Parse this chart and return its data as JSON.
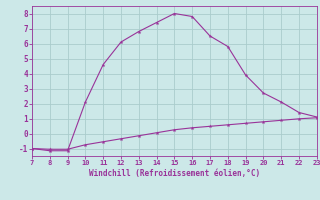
{
  "xlabel": "Windchill (Refroidissement éolien,°C)",
  "x_upper": [
    7,
    8,
    9,
    10,
    11,
    12,
    13,
    14,
    15,
    16,
    17,
    18,
    19,
    20,
    21,
    22,
    23
  ],
  "y_upper": [
    -1.0,
    -1.15,
    -1.15,
    2.1,
    4.6,
    6.1,
    6.8,
    7.4,
    8.0,
    7.8,
    6.5,
    5.8,
    3.9,
    2.7,
    2.1,
    1.4,
    1.1
  ],
  "x_lower": [
    7,
    8,
    9,
    10,
    11,
    12,
    13,
    14,
    15,
    16,
    17,
    18,
    19,
    20,
    21,
    22,
    23
  ],
  "y_lower": [
    -1.0,
    -1.05,
    -1.05,
    -0.75,
    -0.55,
    -0.35,
    -0.15,
    0.05,
    0.25,
    0.38,
    0.48,
    0.58,
    0.68,
    0.78,
    0.88,
    0.98,
    1.05
  ],
  "line_color": "#993399",
  "bg_color": "#cce8e8",
  "grid_color": "#aacccc",
  "axis_color": "#993399",
  "text_color": "#993399",
  "xlim": [
    7,
    23
  ],
  "ylim": [
    -1.5,
    8.5
  ],
  "xticks": [
    7,
    8,
    9,
    10,
    11,
    12,
    13,
    14,
    15,
    16,
    17,
    18,
    19,
    20,
    21,
    22,
    23
  ],
  "yticks": [
    -1,
    0,
    1,
    2,
    3,
    4,
    5,
    6,
    7,
    8
  ]
}
